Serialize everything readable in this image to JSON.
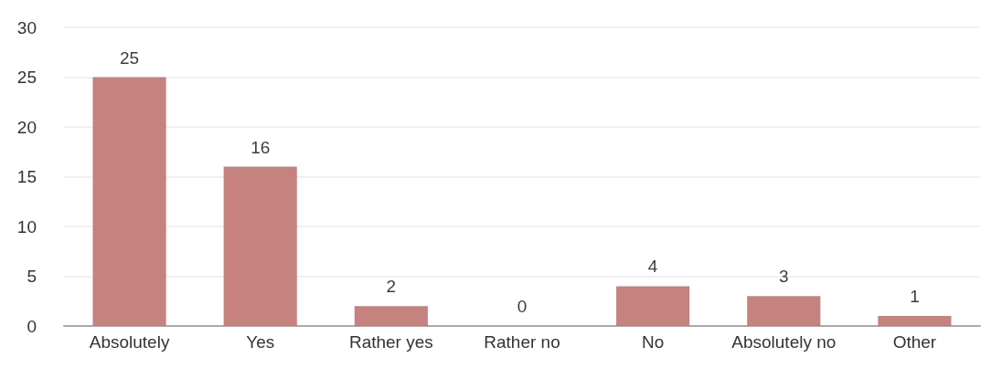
{
  "chart_data": {
    "type": "bar",
    "categories": [
      "Absolutely",
      "Yes",
      "Rather yes",
      "Rather no",
      "No",
      "Absolutely no",
      "Other"
    ],
    "values": [
      25,
      16,
      2,
      0,
      4,
      3,
      1
    ],
    "color": "#c27b77",
    "ylim": [
      0,
      30
    ],
    "yticks": [
      0,
      5,
      10,
      15,
      20,
      25,
      30
    ],
    "grid": "y",
    "data_labels": true
  }
}
